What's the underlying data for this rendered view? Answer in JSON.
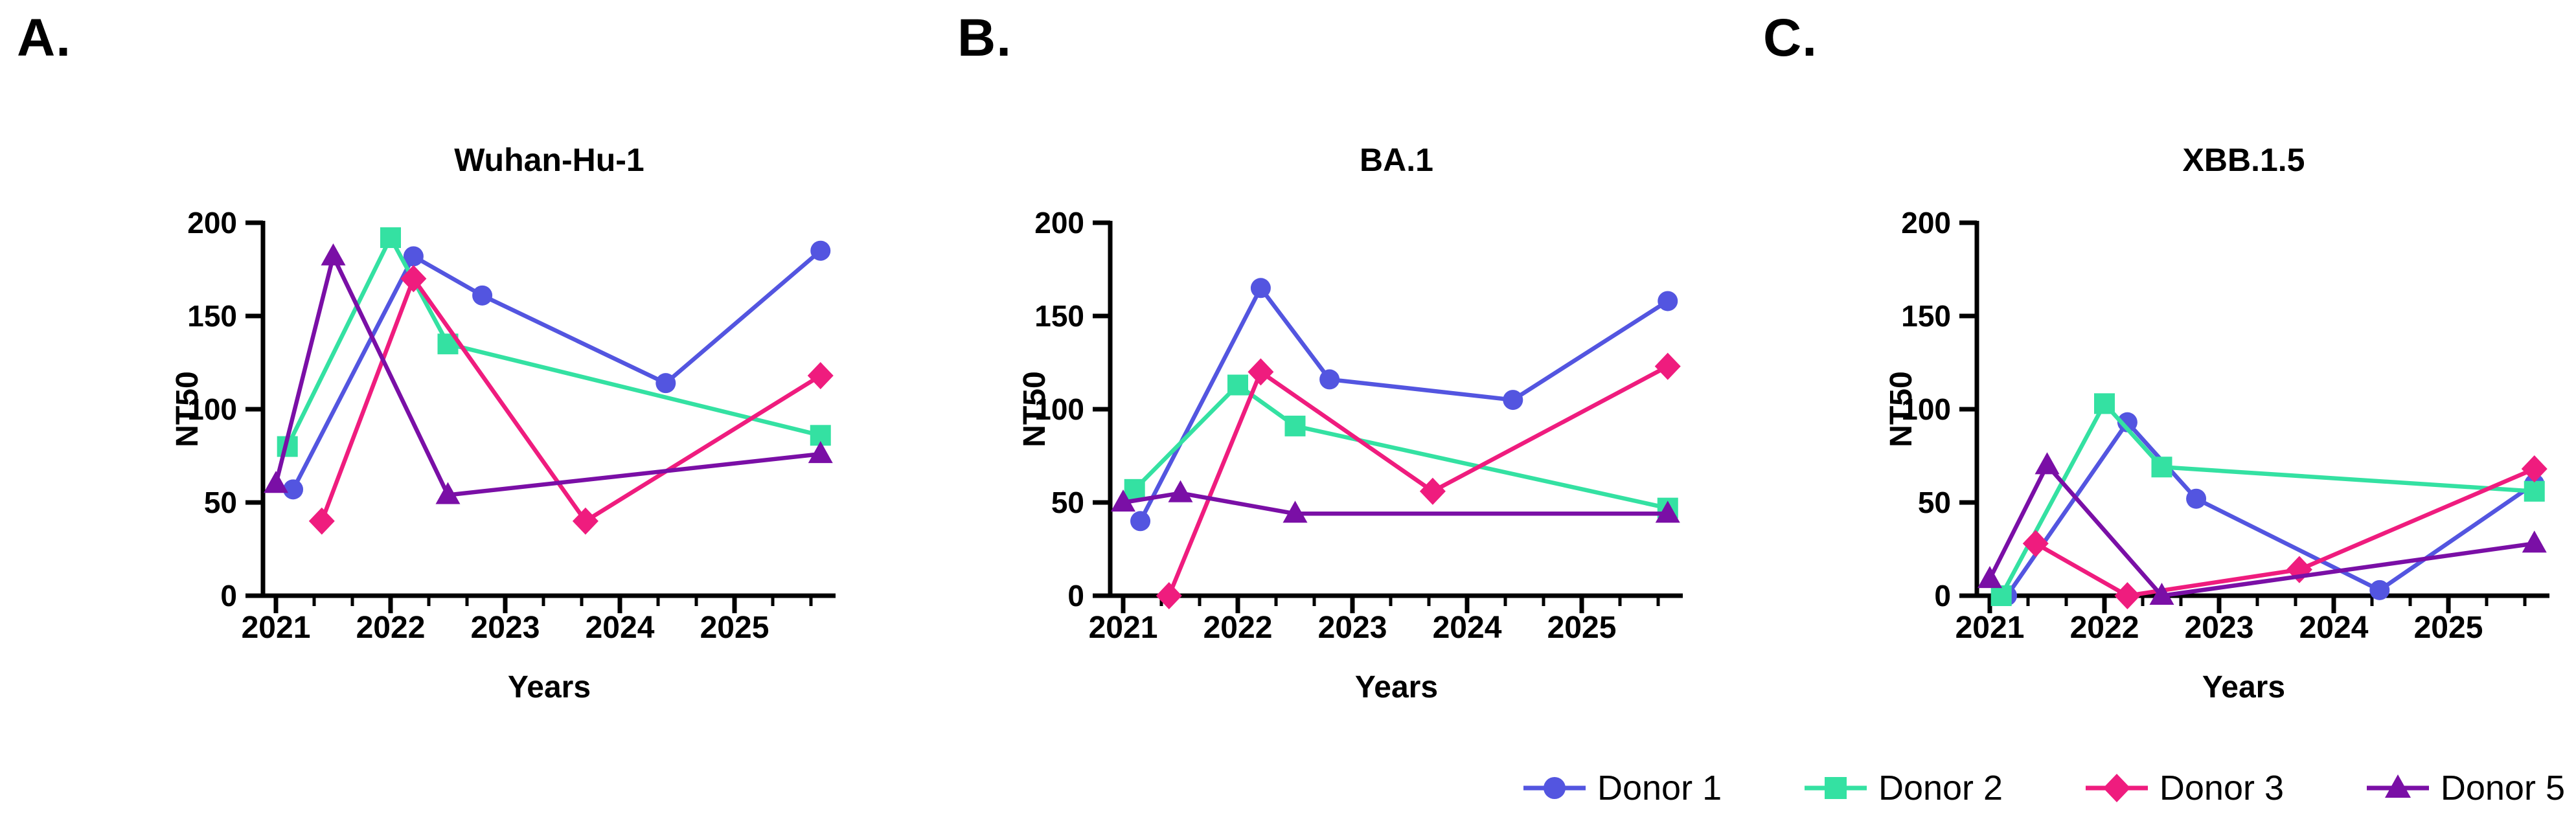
{
  "figure": {
    "background": "#ffffff"
  },
  "panels": [
    {
      "letter": "A."
    },
    {
      "letter": "B."
    },
    {
      "letter": "C."
    }
  ],
  "legend": {
    "items": [
      {
        "label": "Donor 1",
        "color": "#5355E0",
        "marker": "circle"
      },
      {
        "label": "Donor 2",
        "color": "#34E1A2",
        "marker": "square"
      },
      {
        "label": "Donor 3",
        "color": "#EF1C7E",
        "marker": "diamond"
      },
      {
        "label": "Donor 5",
        "color": "#7A0FA6",
        "marker": "triangle"
      }
    ]
  },
  "chart_data": [
    {
      "type": "line",
      "title": "Wuhan-Hu-1",
      "xlabel": "Years",
      "ylabel": "NT50",
      "xlim": [
        2020.87,
        2025.88
      ],
      "ylim": [
        0,
        200
      ],
      "yticks": [
        0,
        50,
        100,
        150,
        200
      ],
      "xticks": [
        2021,
        2022,
        2023,
        2024,
        2025
      ],
      "minor_tick_step_years": 0.3333,
      "grid": false,
      "legend_position": "bottom-right-shared",
      "series": [
        {
          "name": "Donor 1",
          "color": "#5355E0",
          "marker": "circle",
          "x": [
            2021.15,
            2022.2,
            2022.8,
            2024.4,
            2025.75
          ],
          "y": [
            57,
            182,
            161,
            114,
            185
          ]
        },
        {
          "name": "Donor 2",
          "color": "#34E1A2",
          "marker": "square",
          "x": [
            2021.1,
            2022.0,
            2022.5,
            2025.75
          ],
          "y": [
            80,
            192,
            135,
            86
          ]
        },
        {
          "name": "Donor 3",
          "color": "#EF1C7E",
          "marker": "diamond",
          "x": [
            2021.4,
            2022.2,
            2023.7,
            2025.75
          ],
          "y": [
            40,
            170,
            40,
            118
          ]
        },
        {
          "name": "Donor 5",
          "color": "#7A0FA6",
          "marker": "triangle",
          "x": [
            2021.0,
            2021.5,
            2022.5,
            2025.75
          ],
          "y": [
            60,
            182,
            54,
            76
          ]
        }
      ]
    },
    {
      "type": "line",
      "title": "BA.1",
      "xlabel": "Years",
      "ylabel": "NT50",
      "xlim": [
        2020.87,
        2025.88
      ],
      "ylim": [
        0,
        200
      ],
      "yticks": [
        0,
        50,
        100,
        150,
        200
      ],
      "xticks": [
        2021,
        2022,
        2023,
        2024,
        2025
      ],
      "minor_tick_step_years": 0.3333,
      "grid": false,
      "legend_position": "bottom-right-shared",
      "series": [
        {
          "name": "Donor 1",
          "color": "#5355E0",
          "marker": "circle",
          "x": [
            2021.15,
            2022.2,
            2022.8,
            2024.4,
            2025.75
          ],
          "y": [
            40,
            165,
            116,
            105,
            158
          ]
        },
        {
          "name": "Donor 2",
          "color": "#34E1A2",
          "marker": "square",
          "x": [
            2021.1,
            2022.0,
            2022.5,
            2025.75
          ],
          "y": [
            57,
            113,
            91,
            47
          ]
        },
        {
          "name": "Donor 3",
          "color": "#EF1C7E",
          "marker": "diamond",
          "x": [
            2021.4,
            2022.2,
            2023.7,
            2025.75
          ],
          "y": [
            0,
            120,
            56,
            123
          ]
        },
        {
          "name": "Donor 5",
          "color": "#7A0FA6",
          "marker": "triangle",
          "x": [
            2021.0,
            2021.5,
            2022.5,
            2025.75
          ],
          "y": [
            50,
            55,
            44,
            44
          ]
        }
      ]
    },
    {
      "type": "line",
      "title": "XBB.1.5",
      "xlabel": "Years",
      "ylabel": "NT50",
      "xlim": [
        2020.87,
        2025.88
      ],
      "ylim": [
        0,
        200
      ],
      "yticks": [
        0,
        50,
        100,
        150,
        200
      ],
      "xticks": [
        2021,
        2022,
        2023,
        2024,
        2025
      ],
      "minor_tick_step_years": 0.3333,
      "grid": false,
      "legend_position": "bottom-right-shared",
      "series": [
        {
          "name": "Donor 1",
          "color": "#5355E0",
          "marker": "circle",
          "x": [
            2021.15,
            2022.2,
            2022.8,
            2024.4,
            2025.75
          ],
          "y": [
            0,
            93,
            52,
            3,
            60
          ]
        },
        {
          "name": "Donor 2",
          "color": "#34E1A2",
          "marker": "square",
          "x": [
            2021.1,
            2022.0,
            2022.5,
            2025.75
          ],
          "y": [
            0,
            103,
            69,
            56
          ]
        },
        {
          "name": "Donor 3",
          "color": "#EF1C7E",
          "marker": "diamond",
          "x": [
            2021.4,
            2022.2,
            2023.7,
            2025.75
          ],
          "y": [
            28,
            0,
            14,
            68
          ]
        },
        {
          "name": "Donor 5",
          "color": "#7A0FA6",
          "marker": "triangle",
          "x": [
            2021.0,
            2021.5,
            2022.5,
            2025.75
          ],
          "y": [
            9,
            70,
            0,
            28
          ]
        }
      ]
    }
  ]
}
